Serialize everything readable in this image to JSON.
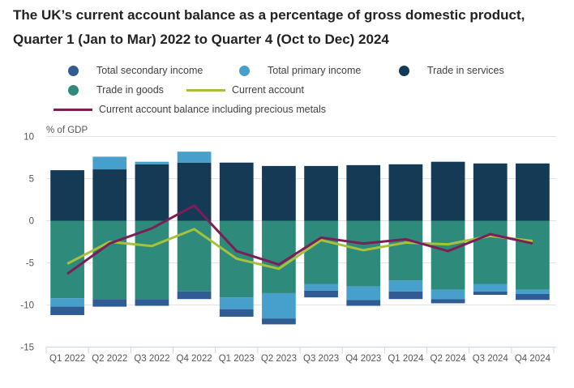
{
  "chart_data": {
    "type": "bar",
    "stacked": true,
    "title": "The UK’s current account balance as a percentage of gross domestic product, Quarter 1 (Jan to Mar) 2022 to Quarter 4 (Oct to Dec) 2024",
    "ylabel": "% of GDP",
    "ylim": [
      -15,
      10
    ],
    "yticks": [
      "10",
      "5",
      "0",
      "-5",
      "-10",
      "-15"
    ],
    "grid": true,
    "legend_position": "top",
    "categories": [
      "Q1 2022",
      "Q2 2022",
      "Q3 2022",
      "Q4 2022",
      "Q1 2023",
      "Q2 2023",
      "Q3 2023",
      "Q4 2023",
      "Q1 2024",
      "Q2 2024",
      "Q3 2024",
      "Q4 2024"
    ],
    "series": [
      {
        "name": "Total secondary income",
        "kind": "bar",
        "color": "#2f5d93",
        "values": [
          -1.0,
          -0.9,
          -0.8,
          -0.9,
          -0.9,
          -0.7,
          -0.8,
          -0.7,
          -0.9,
          -0.5,
          -0.4,
          -0.7
        ]
      },
      {
        "name": "Total primary income",
        "kind": "bar",
        "color": "#479fcc",
        "values": [
          -1.0,
          1.5,
          0.3,
          1.3,
          -1.4,
          -3.0,
          -0.8,
          -1.6,
          -1.3,
          -1.1,
          -0.9,
          -0.5
        ]
      },
      {
        "name": "Trade in services",
        "kind": "bar",
        "color": "#143a56",
        "values": [
          6.0,
          6.1,
          6.7,
          6.9,
          6.9,
          6.5,
          6.5,
          6.6,
          6.7,
          7.0,
          6.8,
          6.8
        ]
      },
      {
        "name": "Trade in goods",
        "kind": "bar",
        "color": "#2e8a7a",
        "values": [
          -9.2,
          -9.3,
          -9.3,
          -8.4,
          -9.1,
          -8.6,
          -7.5,
          -7.8,
          -7.1,
          -8.2,
          -7.5,
          -8.2
        ]
      },
      {
        "name": "Current account",
        "kind": "line",
        "color": "#a8c13c",
        "values": [
          -5.1,
          -2.5,
          -3.0,
          -1.0,
          -4.5,
          -5.7,
          -2.3,
          -3.5,
          -2.6,
          -2.8,
          -1.8,
          -2.4
        ]
      },
      {
        "name": "Current account balance including precious metals",
        "kind": "line",
        "color": "#7a1f57",
        "values": [
          -6.3,
          -2.7,
          -0.9,
          1.8,
          -3.6,
          -5.2,
          -2.0,
          -2.7,
          -2.2,
          -3.6,
          -1.6,
          -2.7
        ]
      }
    ]
  }
}
